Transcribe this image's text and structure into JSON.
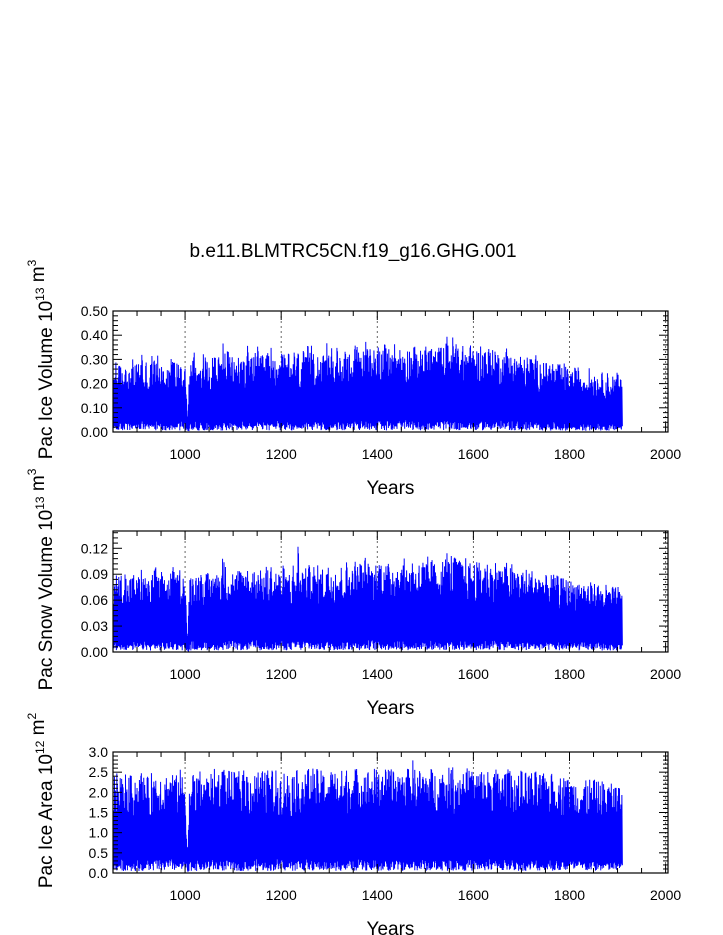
{
  "title": "b.e11.BLMTRC5CN.f19_g16.GHG.001",
  "colors": {
    "series": "#0000ff",
    "axes": "#000000",
    "reference_lines": "#555555"
  },
  "chart_data": [
    {
      "type": "line",
      "title": "b.e11.BLMTRC5CN.f19_g16.GHG.001",
      "xlabel": "Years",
      "ylabel_main": "Pac Ice Volume 10",
      "ylabel_exp": "13",
      "ylabel_unit": "m",
      "ylabel_unit_exp": "3",
      "xlim": [
        850,
        2005
      ],
      "ylim": [
        0,
        0.5
      ],
      "xticks": [
        1000,
        1200,
        1400,
        1600,
        1800,
        2000
      ],
      "yticks": [
        "0.00",
        "0.10",
        "0.20",
        "0.30",
        "0.40",
        "0.50"
      ],
      "reference_lines_x": [
        1000,
        1200,
        1400,
        1600,
        1800,
        2000
      ],
      "series": [
        {
          "color": "#0000ff",
          "x_start": 850,
          "x_step": 5,
          "values": [
            0.22,
            0.33,
            0.26,
            0.3,
            0.24,
            0.32,
            0.28,
            0.25,
            0.31,
            0.27,
            0.3,
            0.29,
            0.35,
            0.26,
            0.31,
            0.24,
            0.33,
            0.3,
            0.37,
            0.28,
            0.32,
            0.27,
            0.31,
            0.29,
            0.3,
            0.34,
            0.27,
            0.31,
            0.35,
            0.29,
            0.3,
            0.05,
            0.31,
            0.3,
            0.36,
            0.27,
            0.32,
            0.3,
            0.34,
            0.29,
            0.31,
            0.28,
            0.36,
            0.3,
            0.33,
            0.29,
            0.41,
            0.31,
            0.35,
            0.3,
            0.32,
            0.29,
            0.33,
            0.31,
            0.35,
            0.3,
            0.36,
            0.29,
            0.34,
            0.32,
            0.37,
            0.3,
            0.33,
            0.31,
            0.35,
            0.32,
            0.36,
            0.3,
            0.34,
            0.31,
            0.32,
            0.35,
            0.3,
            0.33,
            0.29,
            0.36,
            0.31,
            0.34,
            0.3,
            0.35,
            0.31,
            0.36,
            0.33,
            0.41,
            0.32,
            0.35,
            0.31,
            0.34,
            0.3,
            0.38,
            0.32,
            0.35,
            0.33,
            0.36,
            0.31,
            0.34,
            0.32,
            0.37,
            0.33,
            0.36,
            0.32,
            0.38,
            0.34,
            0.37,
            0.33,
            0.39,
            0.35,
            0.38,
            0.33,
            0.37,
            0.34,
            0.4,
            0.35,
            0.37,
            0.33,
            0.36,
            0.34,
            0.38,
            0.35,
            0.37,
            0.33,
            0.38,
            0.34,
            0.36,
            0.35,
            0.39,
            0.33,
            0.36,
            0.34,
            0.37,
            0.35,
            0.38,
            0.36,
            0.37,
            0.34,
            0.36,
            0.35,
            0.38,
            0.34,
            0.4,
            0.36,
            0.41,
            0.38,
            0.39,
            0.36,
            0.37,
            0.35,
            0.38,
            0.34,
            0.37,
            0.35,
            0.36,
            0.34,
            0.37,
            0.33,
            0.38,
            0.35,
            0.36,
            0.34,
            0.37,
            0.33,
            0.35,
            0.32,
            0.34,
            0.36,
            0.33,
            0.35,
            0.31,
            0.34,
            0.32,
            0.33,
            0.3,
            0.32,
            0.31,
            0.33,
            0.3,
            0.32,
            0.29,
            0.31,
            0.3,
            0.28,
            0.31,
            0.29,
            0.3,
            0.27,
            0.29,
            0.28,
            0.27,
            0.29,
            0.26,
            0.28,
            0.25,
            0.27,
            0.26,
            0.28,
            0.25,
            0.26,
            0.24,
            0.27,
            0.25,
            0.26,
            0.24,
            0.25,
            0.23,
            0.26,
            0.24,
            0.25,
            0.22,
            0.24,
            0.23,
            0.25,
            0.22,
            0.23
          ]
        }
      ]
    },
    {
      "type": "line",
      "xlabel": "Years",
      "ylabel_main": "Pac Snow Volume 10",
      "ylabel_exp": "13",
      "ylabel_unit": "m",
      "ylabel_unit_exp": "3",
      "xlim": [
        850,
        2005
      ],
      "ylim": [
        0,
        0.14
      ],
      "xticks": [
        1000,
        1200,
        1400,
        1600,
        1800,
        2000
      ],
      "yticks": [
        "0.00",
        "0.03",
        "0.06",
        "0.09",
        "0.12"
      ],
      "reference_lines_x": [
        1000,
        1200,
        1400,
        1600,
        1800,
        2000
      ],
      "series": [
        {
          "color": "#0000ff",
          "x_start": 850,
          "x_step": 5,
          "values": [
            0.08,
            0.1,
            0.085,
            0.095,
            0.09,
            0.098,
            0.082,
            0.09,
            0.088,
            0.096,
            0.085,
            0.092,
            0.1,
            0.087,
            0.094,
            0.08,
            0.092,
            0.095,
            0.103,
            0.088,
            0.096,
            0.084,
            0.093,
            0.091,
            0.094,
            0.1,
            0.085,
            0.092,
            0.099,
            0.09,
            0.095,
            0.01,
            0.093,
            0.092,
            0.101,
            0.087,
            0.096,
            0.092,
            0.1,
            0.09,
            0.094,
            0.088,
            0.103,
            0.091,
            0.098,
            0.09,
            0.125,
            0.095,
            0.102,
            0.092,
            0.098,
            0.09,
            0.1,
            0.094,
            0.103,
            0.091,
            0.104,
            0.089,
            0.101,
            0.095,
            0.106,
            0.092,
            0.099,
            0.094,
            0.102,
            0.096,
            0.105,
            0.091,
            0.1,
            0.094,
            0.096,
            0.102,
            0.091,
            0.098,
            0.089,
            0.104,
            0.094,
            0.128,
            0.092,
            0.103,
            0.095,
            0.106,
            0.098,
            0.112,
            0.096,
            0.103,
            0.093,
            0.101,
            0.091,
            0.109,
            0.097,
            0.104,
            0.098,
            0.106,
            0.094,
            0.101,
            0.096,
            0.108,
            0.099,
            0.106,
            0.097,
            0.11,
            0.101,
            0.108,
            0.099,
            0.112,
            0.103,
            0.109,
            0.098,
            0.107,
            0.101,
            0.113,
            0.104,
            0.108,
            0.099,
            0.106,
            0.102,
            0.11,
            0.104,
            0.108,
            0.099,
            0.11,
            0.102,
            0.106,
            0.103,
            0.115,
            0.1,
            0.106,
            0.102,
            0.109,
            0.104,
            0.111,
            0.106,
            0.109,
            0.102,
            0.106,
            0.104,
            0.11,
            0.102,
            0.127,
            0.107,
            0.118,
            0.11,
            0.113,
            0.106,
            0.109,
            0.104,
            0.111,
            0.102,
            0.108,
            0.104,
            0.106,
            0.102,
            0.108,
            0.1,
            0.11,
            0.104,
            0.106,
            0.102,
            0.108,
            0.1,
            0.104,
            0.098,
            0.101,
            0.105,
            0.099,
            0.103,
            0.095,
            0.101,
            0.097,
            0.099,
            0.092,
            0.097,
            0.095,
            0.099,
            0.092,
            0.096,
            0.09,
            0.094,
            0.092,
            0.088,
            0.094,
            0.09,
            0.092,
            0.086,
            0.09,
            0.088,
            0.085,
            0.09,
            0.083,
            0.087,
            0.081,
            0.085,
            0.083,
            0.088,
            0.08,
            0.083,
            0.078,
            0.085,
            0.08,
            0.083,
            0.077,
            0.081,
            0.075,
            0.082,
            0.078,
            0.08,
            0.072,
            0.078,
            0.074,
            0.08,
            0.07,
            0.073
          ]
        }
      ]
    },
    {
      "type": "line",
      "xlabel": "Years",
      "ylabel_main": "Pac Ice Area 10",
      "ylabel_exp": "12",
      "ylabel_unit": "m",
      "ylabel_unit_exp": "2",
      "xlim": [
        850,
        2005
      ],
      "ylim": [
        0,
        3.0
      ],
      "xticks": [
        1000,
        1200,
        1400,
        1600,
        1800,
        2000
      ],
      "yticks": [
        "0.0",
        "0.5",
        "1.0",
        "1.5",
        "2.0",
        "2.5",
        "3.0"
      ],
      "reference_lines_x": [
        1000,
        1200,
        1400,
        1600,
        1800,
        2000
      ],
      "series": [
        {
          "color": "#0000ff",
          "x_start": 850,
          "x_step": 5,
          "values": [
            2.2,
            2.65,
            2.35,
            2.5,
            2.4,
            2.55,
            2.3,
            2.45,
            2.4,
            2.55,
            2.35,
            2.5,
            2.6,
            2.4,
            2.52,
            2.25,
            2.5,
            2.55,
            2.62,
            2.45,
            2.55,
            2.35,
            2.5,
            2.48,
            2.52,
            2.6,
            2.4,
            2.5,
            2.58,
            2.45,
            2.55,
            0.4,
            2.5,
            2.48,
            2.6,
            2.42,
            2.55,
            2.5,
            2.58,
            2.45,
            2.52,
            2.45,
            2.62,
            2.48,
            2.56,
            2.46,
            2.75,
            2.52,
            2.6,
            2.48,
            2.56,
            2.46,
            2.58,
            2.5,
            2.62,
            2.48,
            2.62,
            2.45,
            2.58,
            2.52,
            2.65,
            2.48,
            2.56,
            2.5,
            2.6,
            2.52,
            2.64,
            2.48,
            2.58,
            2.5,
            2.52,
            2.6,
            2.48,
            2.56,
            2.45,
            2.62,
            2.5,
            2.6,
            2.48,
            2.62,
            2.5,
            2.64,
            2.55,
            2.7,
            2.52,
            2.6,
            2.5,
            2.58,
            2.48,
            2.65,
            2.54,
            2.6,
            2.55,
            2.62,
            2.5,
            2.58,
            2.52,
            2.64,
            2.55,
            2.62,
            2.52,
            2.66,
            2.56,
            2.64,
            2.54,
            2.68,
            2.58,
            2.65,
            2.54,
            2.64,
            2.56,
            2.7,
            2.58,
            2.64,
            2.54,
            2.62,
            2.56,
            2.66,
            2.58,
            2.64,
            2.54,
            2.66,
            2.56,
            2.62,
            2.58,
            2.88,
            2.54,
            2.62,
            2.56,
            2.64,
            2.58,
            2.66,
            2.6,
            2.64,
            2.56,
            2.62,
            2.58,
            2.66,
            2.56,
            2.68,
            2.6,
            2.72,
            2.62,
            2.66,
            2.6,
            2.64,
            2.58,
            2.66,
            2.56,
            2.64,
            2.58,
            2.62,
            2.56,
            2.64,
            2.54,
            2.66,
            2.58,
            2.62,
            2.56,
            2.64,
            2.54,
            2.6,
            2.52,
            2.58,
            2.62,
            2.54,
            2.6,
            2.5,
            2.58,
            2.52,
            2.56,
            2.48,
            2.54,
            2.52,
            2.56,
            2.48,
            2.54,
            2.45,
            2.52,
            2.48,
            2.42,
            2.52,
            2.46,
            2.5,
            2.4,
            2.46,
            2.44,
            2.4,
            2.46,
            2.36,
            2.42,
            2.32,
            2.4,
            2.36,
            2.44,
            2.3,
            2.36,
            2.28,
            2.4,
            2.32,
            2.36,
            2.26,
            2.32,
            2.22,
            2.36,
            2.28,
            2.32,
            2.18,
            2.28,
            2.22,
            2.3,
            2.1,
            2.2
          ]
        }
      ]
    }
  ]
}
